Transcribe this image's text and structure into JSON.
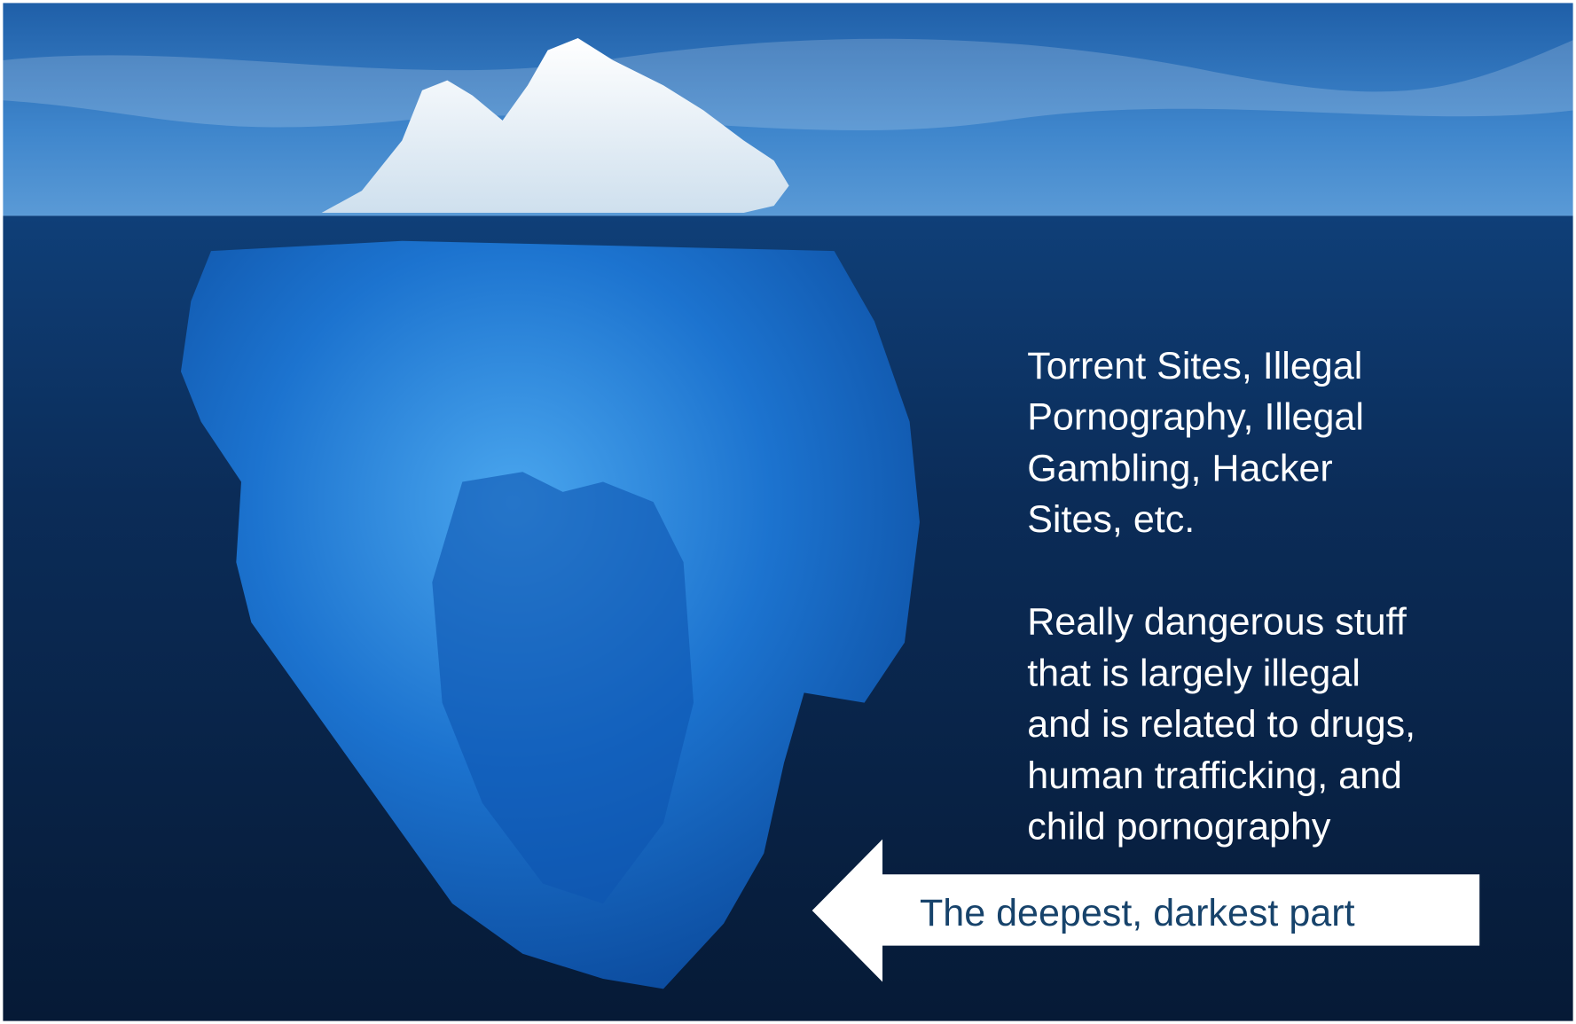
{
  "paragraphs": [
    [
      "Torrent Sites, Illegal",
      "Pornography, Illegal",
      "Gambling, Hacker",
      "Sites, etc."
    ],
    [
      "Really dangerous stuff",
      "that is largely illegal",
      "and is related to drugs,",
      "human trafficking, and",
      "child pornography"
    ]
  ],
  "callout": "The deepest, darkest part"
}
